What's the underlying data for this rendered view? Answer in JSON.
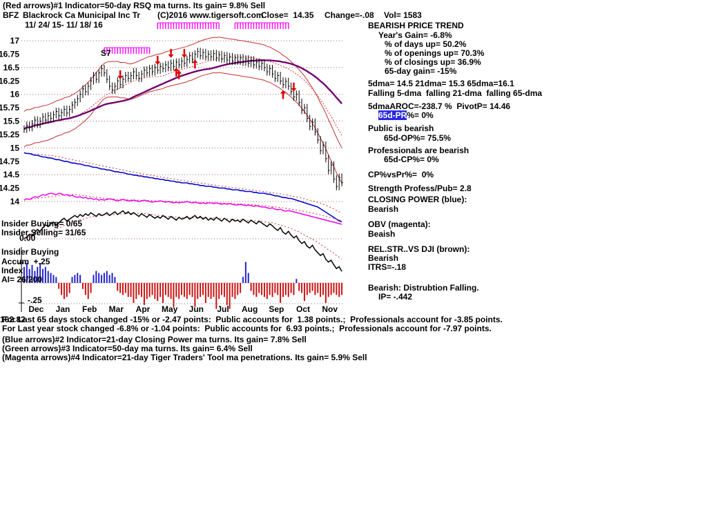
{
  "header": {
    "indicator_line": "(Red arrows)#1 Indicator=50-day RSQ ma turns. Its gain= 9.8% Sell",
    "ticker": "BFZ",
    "company": "Blackrock Ca Municipal Inc Tr",
    "copyright": "(C)2016 www.tigersoft.com",
    "close": "Close=  14.35",
    "change": "Change=-.08",
    "volume": "Vol= 1583",
    "date_range": "11/ 24/ 15- 11/ 18/ 16"
  },
  "panel": {
    "trend_title": "BEARISH PRICE TREND",
    "years_gain": "Year's Gain= -6.8%",
    "pct_days_up": "% of days up= 50.2%",
    "pct_openings_up": "% of openings up= 70.3%",
    "pct_closings_up": "% of closings up= 36.9%",
    "gain_65day": "65-day gain= -15%",
    "dma_line": "5dma= 14.5 21dma= 15.3 65dma=16.1",
    "falling_line": "Falling 5-dma  falling 21-dma  falling 65-dma",
    "aroc_line": "5dmaAROC=-238.7 %  PivotP= 14.46",
    "pr_highlight": "65d-PR",
    "pr_rest": "%= 0%",
    "public_line": "Public is bearish",
    "op_line": "65d-OP%= 75.5%",
    "prof_line": "Professionals are bearish",
    "cp_line": "65d-CP%= 0%",
    "cpvspr": "CP%vsPr%=  0%",
    "strength": "Strength Profess/Pub= 2.8",
    "closing_power_title": "CLOSING POWER (blue):",
    "closing_power_state": "Bearish",
    "obv_title": "OBV (magenta):",
    "obv_state": "Beaish",
    "relstr_title": "REL.STR..VS DJI (brown):",
    "relstr_state": "Bearish",
    "itrs": "ITRS=-.18",
    "distribution": "Bearish: Distrubtion Falling.",
    "ip": "IP= -.442"
  },
  "chart_labels": {
    "s7": "S7",
    "insider_buying_count": "Insider Buying= 0/65",
    "insider_selling_count": "Insider Selling= 31/65",
    "rs_zero": "0.00",
    "accum_line1": "Insider Buying",
    "accum_line2": "Accum  +.25",
    "accum_line3": "Index",
    "accum_line4": "AI= 26/200",
    "accum_neg": "-.25"
  },
  "footer": {
    "line1_overlay": "162.82",
    "line1": "For Last 65 days stock changed -15% or -2.47 points:  Public accounts for  1.38 points.;  Professionals account for -3.85 points.",
    "line2": "For Last year stock changed -6.8% or -1.04 points:  Public accounts for  6.93 points.;  Professionals account for -7.97 points.",
    "line3": "(Blue arrows)#2 Indicator=21-day Closing Power ma turns. Its gain= 7.8% Sell",
    "line4": "(Green arrows)#3 Indicator=50-day ma turns. Its gain= 6.4% Sell",
    "line5": "(Magenta arrows)#4 Indicator=21-day Tiger Traders' Tool ma penetrations. Its gain= 5.9% Sell"
  },
  "colors": {
    "closing_power": "#0000cc",
    "obv": "#ee00ee",
    "rel_strength": "#000000",
    "bands": "#c03030",
    "long_ma": "#70006e",
    "arrows": "#dd0000",
    "accum_pos": "#2222cc",
    "accum_neg": "#cc1111",
    "ribbon": "#ff00ff",
    "highlight": "#2a2ae0"
  },
  "chart_data": {
    "type": "composite",
    "description": "Top pane: daily OHLC bars with red trading bands, dotted 21-dma, purple 65-dma, magenta signal ribbon, red buy/sell arrows. Middle overlays: blue Closing Power line, magenta OBV line, black Relative Strength vs DJI line (each with dotted red ma). Bottom pane: Tiger Accumulation Index histogram (blue positive / red negative).",
    "months": [
      "Dec",
      "Jan",
      "Feb",
      "Mar",
      "Apr",
      "May",
      "Jun",
      "Jul",
      "Aug",
      "Sep",
      "Oct",
      "Nov"
    ],
    "legend": [
      "CLOSING POWER (blue)",
      "OBV (magenta)",
      "REL.STR. VS DJI (brown)",
      "Accum Index histogram"
    ],
    "price": {
      "ylim": [
        14,
        17
      ],
      "ytick_values": [
        17,
        16.75,
        16.5,
        16.25,
        16,
        15.75,
        15.5,
        15.25,
        15,
        14.75,
        14.5,
        14.25,
        14
      ],
      "ytick_labels": [
        "17",
        "16.75",
        "16.5",
        "16.25",
        "16",
        "15.75",
        "15.5",
        "15.25",
        "15",
        "14.75",
        "14.5",
        "14.25",
        "14"
      ],
      "bar_halfrange": 0.07,
      "band_offset": 0.33,
      "close": [
        15.35,
        15.42,
        15.38,
        15.45,
        15.52,
        15.44,
        15.5,
        15.58,
        15.52,
        15.6,
        15.55,
        15.62,
        15.68,
        15.6,
        15.66,
        15.72,
        15.65,
        15.72,
        15.8,
        15.85,
        15.92,
        16.0,
        16.1,
        16.05,
        16.15,
        16.25,
        16.35,
        16.28,
        16.4,
        16.48,
        16.4,
        16.28,
        16.15,
        16.08,
        16.15,
        16.25,
        16.18,
        16.28,
        16.35,
        16.3,
        16.35,
        16.42,
        16.35,
        16.3,
        16.38,
        16.45,
        16.4,
        16.48,
        16.42,
        16.5,
        16.45,
        16.52,
        16.48,
        16.55,
        16.5,
        16.58,
        16.52,
        16.6,
        16.55,
        16.62,
        16.58,
        16.65,
        16.72,
        16.65,
        16.75,
        16.8,
        16.72,
        16.78,
        16.7,
        16.75,
        16.7,
        16.76,
        16.68,
        16.74,
        16.66,
        16.72,
        16.64,
        16.7,
        16.62,
        16.68,
        16.62,
        16.68,
        16.6,
        16.66,
        16.58,
        16.64,
        16.55,
        16.6,
        16.52,
        16.58,
        16.5,
        16.42,
        16.48,
        16.38,
        16.3,
        16.35,
        16.25,
        16.18,
        16.24,
        16.15,
        16.05,
        15.95,
        16.0,
        15.85,
        15.7,
        15.75,
        15.55,
        15.4,
        15.48,
        15.3,
        15.15,
        14.95,
        15.05,
        14.8,
        14.58,
        14.68,
        14.42,
        14.28,
        14.45,
        14.35
      ]
    },
    "closing_power": {
      "values": [
        95,
        94,
        94,
        93,
        92,
        92,
        91,
        90,
        90,
        89,
        89,
        88,
        87,
        87,
        86,
        85,
        85,
        84,
        83,
        83,
        82,
        82,
        81,
        80,
        80,
        79,
        78,
        78,
        77,
        76,
        76,
        75,
        75,
        74,
        73,
        73,
        72,
        72,
        71,
        70,
        70,
        69,
        69,
        68,
        68,
        67,
        67,
        66,
        66,
        65,
        65,
        64,
        64,
        63,
        63,
        62,
        62,
        61,
        61,
        60,
        60,
        60,
        59,
        59,
        58,
        58,
        57,
        57,
        56,
        56,
        56,
        55,
        55,
        54,
        54,
        54,
        53,
        53,
        52,
        52,
        52,
        51,
        51,
        50,
        50,
        50,
        49,
        49,
        48,
        48,
        48,
        47,
        47,
        46,
        45,
        45,
        44,
        43,
        43,
        42,
        42,
        41,
        40,
        39,
        38,
        37,
        36,
        35,
        34,
        33,
        32,
        30,
        28,
        26,
        24,
        22,
        20,
        18,
        16,
        15
      ]
    },
    "obv": {
      "values": [
        60,
        62,
        61,
        63,
        65,
        64,
        66,
        68,
        67,
        69,
        70,
        69,
        68,
        70,
        69,
        67,
        68,
        66,
        67,
        65,
        64,
        65,
        63,
        64,
        62,
        63,
        61,
        62,
        60,
        61,
        60,
        61,
        62,
        61,
        60,
        59,
        60,
        61,
        60,
        59,
        59,
        60,
        59,
        58,
        59,
        60,
        59,
        58,
        57,
        58,
        58,
        59,
        58,
        57,
        58,
        57,
        56,
        57,
        56,
        57,
        57,
        58,
        57,
        56,
        57,
        56,
        55,
        56,
        55,
        56,
        56,
        55,
        56,
        55,
        54,
        55,
        54,
        55,
        54,
        53,
        53,
        54,
        53,
        52,
        53,
        52,
        51,
        52,
        51,
        50,
        50,
        49,
        48,
        49,
        47,
        46,
        47,
        45,
        44,
        45,
        44,
        43,
        42,
        41,
        40,
        39,
        38,
        37,
        36,
        35,
        34,
        33,
        32,
        31,
        30,
        29,
        28,
        27,
        26,
        25
      ]
    },
    "rel_strength": {
      "values": [
        40,
        42,
        45,
        43,
        47,
        50,
        48,
        52,
        55,
        53,
        56,
        58,
        55,
        57,
        60,
        62,
        59,
        61,
        63,
        65,
        63,
        66,
        64,
        67,
        65,
        68,
        66,
        64,
        67,
        65,
        66,
        68,
        65,
        67,
        69,
        66,
        68,
        70,
        67,
        69,
        66,
        68,
        66,
        64,
        67,
        65,
        63,
        66,
        64,
        62,
        64,
        62,
        65,
        63,
        61,
        64,
        62,
        60,
        63,
        61,
        62,
        64,
        61,
        63,
        65,
        62,
        64,
        61,
        63,
        60,
        62,
        60,
        63,
        61,
        59,
        62,
        60,
        58,
        61,
        59,
        60,
        58,
        61,
        59,
        57,
        60,
        58,
        56,
        59,
        57,
        55,
        53,
        56,
        54,
        51,
        49,
        52,
        47,
        45,
        48,
        44,
        41,
        43,
        38,
        35,
        37,
        32,
        30,
        33,
        28,
        25,
        22,
        24,
        18,
        15,
        17,
        12,
        8,
        10,
        5
      ]
    },
    "accum_index": {
      "scale_labels": [
        "+.25",
        "-.25"
      ],
      "values": [
        0.8,
        1.0,
        0.7,
        0.9,
        0.6,
        0.8,
        1.0,
        0.7,
        0.8,
        0.6,
        0.5,
        0.4,
        0.3,
        -0.3,
        -0.6,
        -0.8,
        -0.7,
        -0.5,
        0.3,
        0.4,
        0.5,
        0.4,
        -0.3,
        -0.6,
        -0.8,
        -0.5,
        0.4,
        0.6,
        0.5,
        0.4,
        0.5,
        0.6,
        0.4,
        0.5,
        0.3,
        -0.4,
        -0.5,
        -0.6,
        -0.5,
        -0.7,
        -0.7,
        -1.0,
        -0.8,
        -0.6,
        -0.7,
        -1.1,
        -0.8,
        -0.7,
        -0.6,
        -0.8,
        -0.9,
        -0.7,
        -1.0,
        -0.6,
        -0.7,
        -0.8,
        -1.2,
        -0.7,
        -0.8,
        -0.6,
        -0.7,
        -0.8,
        -0.6,
        -0.7,
        -1.2,
        -0.8,
        -0.7,
        -0.6,
        -1.0,
        -0.7,
        -0.8,
        -0.7,
        -1.3,
        -0.8,
        -0.6,
        -0.7,
        -1.1,
        -1.3,
        -0.7,
        -0.8,
        -0.6,
        -0.5,
        0.3,
        1.05,
        0.5,
        -0.4,
        -0.6,
        -0.7,
        -0.5,
        -0.6,
        -0.7,
        -0.8,
        -0.6,
        -0.7,
        -0.5,
        -0.6,
        -1.0,
        -0.7,
        -0.6,
        -0.7,
        -0.5,
        -0.6,
        0.2,
        -0.4,
        -0.5,
        -0.9,
        -0.6,
        -0.5,
        -0.4,
        -0.6,
        -0.5,
        -0.7,
        -0.6,
        -1.0,
        -0.7,
        -0.6,
        -0.5,
        -0.6,
        -0.7,
        -0.6
      ]
    },
    "ribbon_segments": [
      {
        "from": 30,
        "to": 47,
        "row": 1
      },
      {
        "from": 50,
        "to": 73,
        "row": 0
      },
      {
        "from": 79,
        "to": 99,
        "row": 0
      }
    ],
    "arrows": [
      {
        "i": 36,
        "dir": "down"
      },
      {
        "i": 50,
        "dir": "down"
      },
      {
        "i": 55,
        "dir": "down"
      },
      {
        "i": 60,
        "dir": "down"
      },
      {
        "i": 101,
        "dir": "down"
      },
      {
        "i": 57,
        "dir": "up"
      },
      {
        "i": 58,
        "dir": "up"
      },
      {
        "i": 64,
        "dir": "up"
      },
      {
        "i": 97,
        "dir": "up"
      }
    ]
  }
}
